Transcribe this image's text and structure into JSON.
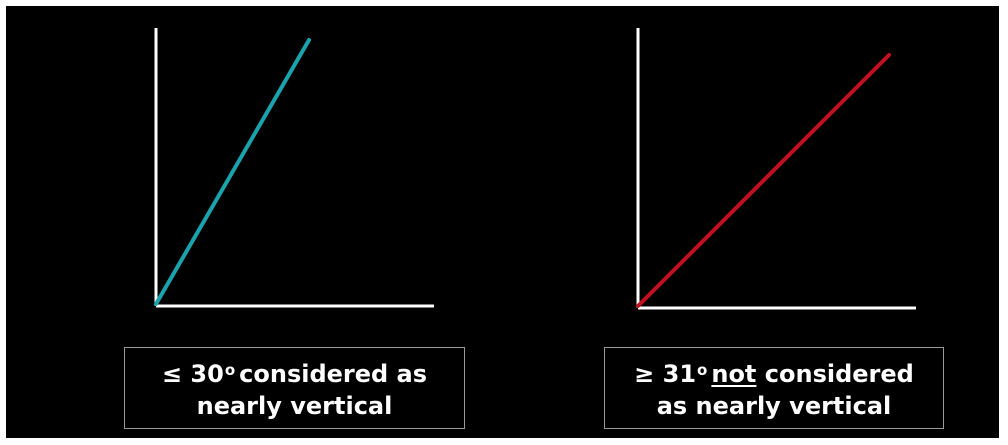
{
  "colors": {
    "background": "#000000",
    "axes": "#ffffff",
    "within_threshold_line": "#1aa3ad",
    "beyond_threshold_line": "#c0111f",
    "caption_border": "#9a9a9a"
  },
  "panels": [
    {
      "caption": {
        "symbol": "≤ 30",
        "degree": "o",
        "line1_rest": "considered as",
        "line2": "nearly vertical"
      }
    },
    {
      "caption": {
        "symbol": "≥ 31",
        "degree": "o",
        "emphasis": "not",
        "line1_rest": "considered",
        "line2": "as nearly vertical"
      }
    }
  ]
}
